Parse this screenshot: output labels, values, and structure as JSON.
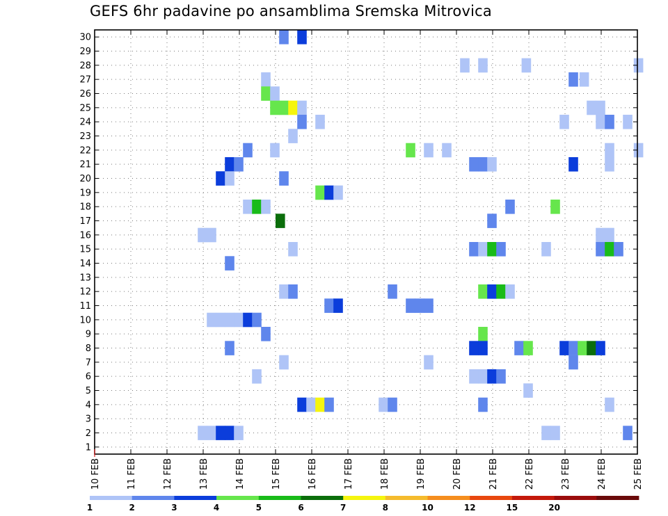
{
  "chart_data": {
    "type": "heatmap",
    "title": "GEFS 6hr padavine po ansamblima Sremska Mitrovica",
    "x_tick_labels": [
      "10 FEB",
      "11 FEB",
      "12 FEB",
      "13 FEB",
      "14 FEB",
      "15 FEB",
      "16 FEB",
      "17 FEB",
      "18 FEB",
      "19 FEB",
      "20 FEB",
      "21 FEB",
      "22 FEB",
      "23 FEB",
      "24 FEB",
      "25 FEB"
    ],
    "y_tick_labels": [
      "1",
      "2",
      "3",
      "4",
      "5",
      "6",
      "7",
      "8",
      "9",
      "10",
      "11",
      "12",
      "13",
      "14",
      "15",
      "16",
      "17",
      "18",
      "19",
      "20",
      "21",
      "22",
      "23",
      "24",
      "25",
      "26",
      "27",
      "28",
      "29",
      "30"
    ],
    "xlim_days": [
      0,
      15
    ],
    "ylim": [
      0.5,
      30.5
    ],
    "grid": true,
    "colorbar": {
      "labels": [
        "1",
        "2",
        "3",
        "4",
        "5",
        "6",
        "7",
        "8",
        "10",
        "12",
        "15",
        "20"
      ],
      "colors": [
        "#afc4f7",
        "#5f86ec",
        "#0b3ddb",
        "#66e64c",
        "#19bb19",
        "#0b6e0b",
        "#f5f50e",
        "#f5bb2d",
        "#f58e1e",
        "#e8470f",
        "#c4190b",
        "#9b0c0c",
        "#6a0a0a"
      ]
    },
    "cells": [
      [
        5.1,
        30,
        2
      ],
      [
        5.6,
        30,
        3
      ],
      [
        10.1,
        28,
        1
      ],
      [
        10.6,
        28,
        1
      ],
      [
        11.8,
        28,
        1
      ],
      [
        14.9,
        28,
        1
      ],
      [
        4.6,
        27,
        1
      ],
      [
        13.1,
        27,
        2
      ],
      [
        13.4,
        27,
        1
      ],
      [
        4.6,
        26,
        4
      ],
      [
        4.85,
        26,
        1
      ],
      [
        4.85,
        25,
        4
      ],
      [
        5.1,
        25,
        4
      ],
      [
        5.35,
        25,
        7
      ],
      [
        5.6,
        25,
        1
      ],
      [
        13.6,
        25,
        1
      ],
      [
        13.85,
        25,
        1
      ],
      [
        5.6,
        24,
        2
      ],
      [
        6.1,
        24,
        1
      ],
      [
        12.85,
        24,
        1
      ],
      [
        13.85,
        24,
        1
      ],
      [
        14.1,
        24,
        2
      ],
      [
        14.6,
        24,
        1
      ],
      [
        5.35,
        23,
        1
      ],
      [
        4.1,
        22,
        2
      ],
      [
        4.85,
        22,
        1
      ],
      [
        8.6,
        22,
        4
      ],
      [
        9.1,
        22,
        1
      ],
      [
        9.6,
        22,
        1
      ],
      [
        14.1,
        22,
        1
      ],
      [
        14.9,
        22,
        1
      ],
      [
        3.6,
        21,
        3
      ],
      [
        3.85,
        21,
        2
      ],
      [
        10.35,
        21,
        2
      ],
      [
        10.6,
        21,
        2
      ],
      [
        10.85,
        21,
        1
      ],
      [
        13.1,
        21,
        3
      ],
      [
        14.1,
        21,
        1
      ],
      [
        3.35,
        20,
        3
      ],
      [
        3.6,
        20,
        1
      ],
      [
        5.1,
        20,
        2
      ],
      [
        6.1,
        19,
        4
      ],
      [
        6.35,
        19,
        3
      ],
      [
        6.6,
        19,
        1
      ],
      [
        4.1,
        18,
        1
      ],
      [
        4.35,
        18,
        5
      ],
      [
        4.6,
        18,
        1
      ],
      [
        11.35,
        18,
        2
      ],
      [
        12.6,
        18,
        4
      ],
      [
        5.0,
        17,
        6
      ],
      [
        10.85,
        17,
        2
      ],
      [
        2.85,
        16,
        1
      ],
      [
        3.1,
        16,
        1
      ],
      [
        13.85,
        16,
        1
      ],
      [
        14.1,
        16,
        1
      ],
      [
        5.35,
        15,
        1
      ],
      [
        10.35,
        15,
        2
      ],
      [
        10.6,
        15,
        1
      ],
      [
        10.85,
        15,
        5
      ],
      [
        11.1,
        15,
        2
      ],
      [
        12.35,
        15,
        1
      ],
      [
        13.85,
        15,
        2
      ],
      [
        14.1,
        15,
        5
      ],
      [
        14.35,
        15,
        2
      ],
      [
        3.6,
        14,
        2
      ],
      [
        5.1,
        12,
        1
      ],
      [
        5.35,
        12,
        2
      ],
      [
        8.1,
        12,
        2
      ],
      [
        10.6,
        12,
        4
      ],
      [
        10.85,
        12,
        3
      ],
      [
        11.1,
        12,
        5
      ],
      [
        11.35,
        12,
        1
      ],
      [
        6.35,
        11,
        2
      ],
      [
        6.6,
        11,
        3
      ],
      [
        8.6,
        11,
        2
      ],
      [
        8.85,
        11,
        2
      ],
      [
        9.1,
        11,
        2
      ],
      [
        3.1,
        10,
        1
      ],
      [
        3.35,
        10,
        1
      ],
      [
        3.6,
        10,
        1
      ],
      [
        3.85,
        10,
        1
      ],
      [
        4.1,
        10,
        3
      ],
      [
        4.35,
        10,
        2
      ],
      [
        4.6,
        9,
        2
      ],
      [
        10.6,
        9,
        4
      ],
      [
        3.6,
        8,
        2
      ],
      [
        10.35,
        8,
        3
      ],
      [
        10.6,
        8,
        3
      ],
      [
        11.6,
        8,
        2
      ],
      [
        11.85,
        8,
        4
      ],
      [
        12.85,
        8,
        3
      ],
      [
        13.1,
        8,
        2
      ],
      [
        13.35,
        8,
        4
      ],
      [
        13.6,
        8,
        6
      ],
      [
        13.85,
        8,
        3
      ],
      [
        5.1,
        7,
        1
      ],
      [
        9.1,
        7,
        1
      ],
      [
        13.1,
        7,
        2
      ],
      [
        4.35,
        6,
        1
      ],
      [
        10.35,
        6,
        1
      ],
      [
        10.6,
        6,
        1
      ],
      [
        10.85,
        6,
        3
      ],
      [
        11.1,
        6,
        2
      ],
      [
        11.85,
        5,
        1
      ],
      [
        5.6,
        4,
        3
      ],
      [
        5.85,
        4,
        1
      ],
      [
        6.1,
        4,
        7
      ],
      [
        6.35,
        4,
        2
      ],
      [
        7.85,
        4,
        1
      ],
      [
        8.1,
        4,
        2
      ],
      [
        10.6,
        4,
        2
      ],
      [
        14.1,
        4,
        1
      ],
      [
        2.85,
        2,
        1
      ],
      [
        3.1,
        2,
        1
      ],
      [
        3.35,
        2,
        3
      ],
      [
        3.6,
        2,
        3
      ],
      [
        3.85,
        2,
        1
      ],
      [
        12.35,
        2,
        1
      ],
      [
        12.6,
        2,
        1
      ],
      [
        14.6,
        2,
        2
      ]
    ]
  }
}
